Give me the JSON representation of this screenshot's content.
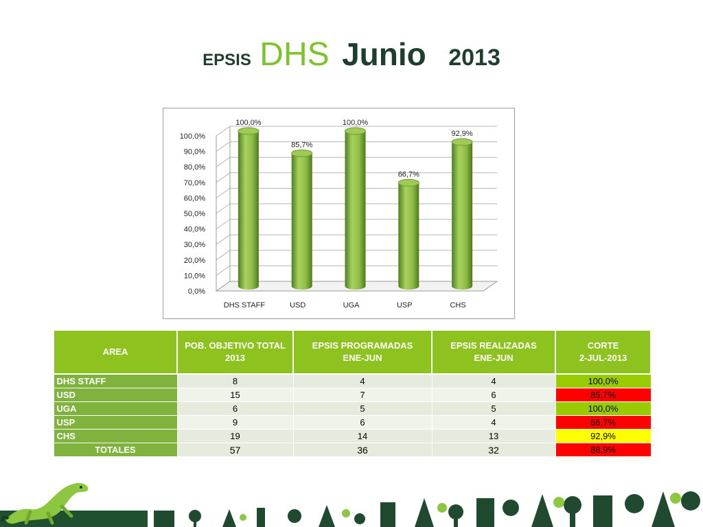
{
  "title": {
    "epsis": "EPSIS",
    "dhs": "DHS",
    "junio": "Junio",
    "year": "2013"
  },
  "colors": {
    "bar": "#8dbb45",
    "header": "#8ec21f",
    "area": "#7fb33e",
    "pct_green": "#99cc00",
    "pct_red": "#ff0000",
    "pct_yellow": "#ffff00"
  },
  "chart_data": {
    "type": "bar",
    "categories": [
      "DHS STAFF",
      "USD",
      "UGA",
      "USP",
      "CHS"
    ],
    "values": [
      100.0,
      85.7,
      100.0,
      66.7,
      92.9
    ],
    "data_labels": [
      "100,0%",
      "85,7%",
      "100,0%",
      "66,7%",
      "92,9%"
    ],
    "ytick_labels": [
      "0,0%",
      "10,0%",
      "20,0%",
      "30,0%",
      "40,0%",
      "50,0%",
      "60,0%",
      "70,0%",
      "80,0%",
      "90,0%",
      "100,0%"
    ],
    "ylim": [
      0,
      100
    ],
    "grid": true,
    "title": "",
    "xlabel": "",
    "ylabel": ""
  },
  "table": {
    "headers": [
      "AREA",
      "POB. OBJETIVO TOTAL\n2013",
      "EPSIS PROGRAMADAS\nENE-JUN",
      "EPSIS REALIZADAS\nENE-JUN",
      "CORTE\n2-JUL-2013"
    ],
    "rows": [
      {
        "area": "DHS STAFF",
        "pob": "8",
        "prog": "4",
        "real": "4",
        "corte": "100,0%",
        "status": "green"
      },
      {
        "area": "USD",
        "pob": "15",
        "prog": "7",
        "real": "6",
        "corte": "85,7%",
        "status": "red"
      },
      {
        "area": "UGA",
        "pob": "6",
        "prog": "5",
        "real": "5",
        "corte": "100,0%",
        "status": "green"
      },
      {
        "area": "USP",
        "pob": "9",
        "prog": "6",
        "real": "4",
        "corte": "66,7%",
        "status": "red"
      },
      {
        "area": "CHS",
        "pob": "19",
        "prog": "14",
        "real": "13",
        "corte": "92,9%",
        "status": "yellow"
      }
    ],
    "totals": {
      "area": "TOTALES",
      "pob": "57",
      "prog": "36",
      "real": "32",
      "corte": "88,9%",
      "status": "red"
    }
  },
  "footer": {
    "iguana": "iguana-logo-icon",
    "pattern": "nature-icons-pattern"
  }
}
